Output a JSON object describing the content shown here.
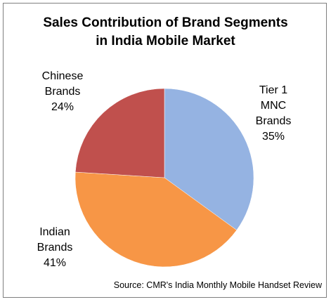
{
  "chart_data": {
    "type": "pie",
    "title_line1": "Sales Contribution of Brand Segments",
    "title_line2": "in India Mobile Market",
    "slices": [
      {
        "label_lines": [
          "Tier 1",
          "MNC",
          "Brands"
        ],
        "value": 35,
        "display": "35%",
        "color": "#95b3e2"
      },
      {
        "label_lines": [
          "Indian",
          "Brands"
        ],
        "value": 41,
        "display": "41%",
        "color": "#f79646"
      },
      {
        "label_lines": [
          "Chinese",
          "Brands"
        ],
        "value": 24,
        "display": "24%",
        "color": "#c0504d"
      }
    ],
    "source": "Source:  CMR's India  Monthly  Mobile  Handset  Review"
  }
}
